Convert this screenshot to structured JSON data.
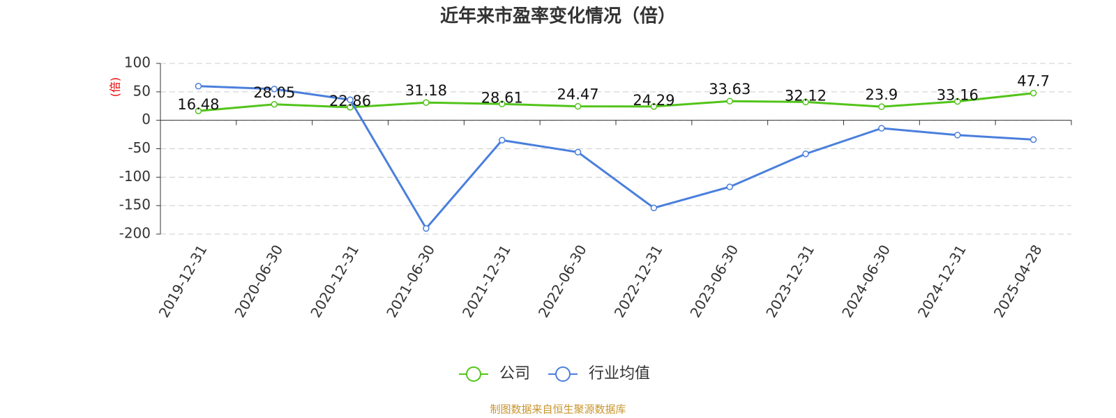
{
  "chart_data": {
    "type": "line",
    "title": "近年来市盈率变化情况（倍）",
    "y_label": "(倍)",
    "categories": [
      "2019-12-31",
      "2020-06-30",
      "2020-12-31",
      "2021-06-30",
      "2021-12-31",
      "2022-06-30",
      "2022-12-31",
      "2023-06-30",
      "2023-12-31",
      "2024-06-30",
      "2024-12-31",
      "2025-04-28"
    ],
    "series": [
      {
        "name": "公司",
        "color": "#52c41a",
        "values": [
          16.48,
          28.05,
          22.86,
          31.18,
          28.61,
          24.47,
          24.29,
          33.63,
          32.12,
          23.9,
          33.16,
          47.7
        ]
      },
      {
        "name": "行业均值",
        "color": "#4a7fdc",
        "values": [
          60,
          55,
          36,
          -190,
          -35,
          -56,
          -154,
          -117,
          -59,
          -14,
          -26,
          -34
        ]
      }
    ],
    "ylim": [
      -200,
      100
    ],
    "yticks": [
      -200,
      -150,
      -100,
      -50,
      0,
      50,
      100
    ],
    "grid": true,
    "source": "制图数据来自恒生聚源数据库"
  }
}
